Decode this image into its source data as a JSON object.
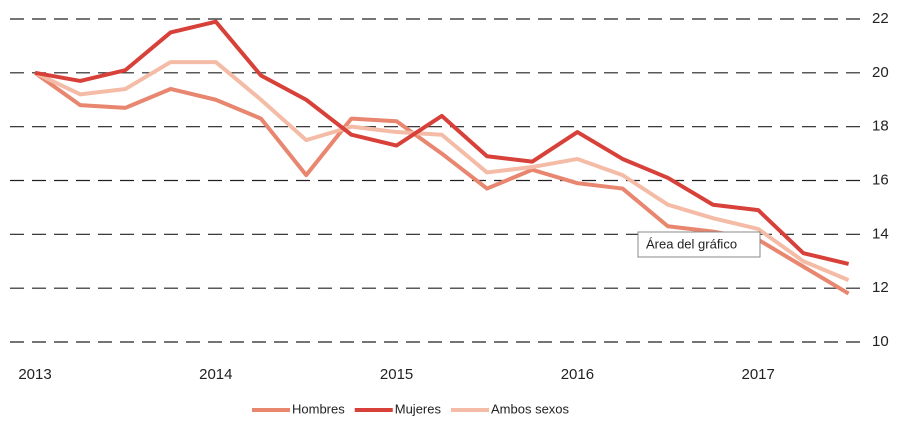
{
  "chart_data": {
    "type": "line",
    "categories": [
      "2013",
      null,
      null,
      null,
      "2014",
      null,
      null,
      null,
      "2015",
      null,
      null,
      null,
      "2016",
      null,
      null,
      null,
      "2017",
      null,
      null
    ],
    "series": [
      {
        "name": "Hombres",
        "color": "#e8866f",
        "values": [
          20.0,
          18.8,
          18.7,
          19.4,
          19.0,
          18.3,
          16.2,
          18.3,
          18.2,
          17.0,
          15.7,
          16.4,
          15.9,
          15.7,
          14.3,
          14.1,
          13.8,
          12.8,
          11.8
        ]
      },
      {
        "name": "Mujeres",
        "color": "#d8403a",
        "values": [
          20.0,
          19.7,
          20.1,
          21.5,
          21.9,
          19.9,
          19.0,
          17.7,
          17.3,
          18.4,
          16.9,
          16.7,
          17.8,
          16.8,
          16.1,
          15.1,
          14.9,
          13.3,
          12.9
        ]
      },
      {
        "name": "Ambos sexos",
        "color": "#f4bca6",
        "values": [
          20.0,
          19.2,
          19.4,
          20.4,
          20.4,
          19.0,
          17.5,
          18.0,
          17.8,
          17.7,
          16.3,
          16.5,
          16.8,
          16.2,
          15.1,
          14.6,
          14.2,
          13.0,
          12.3
        ]
      }
    ],
    "ylim": [
      10,
      22
    ],
    "yticks": [
      10,
      12,
      14,
      16,
      18,
      20,
      22
    ],
    "grid": true,
    "legend": "bottom",
    "annotation": "Área del gráfico"
  }
}
